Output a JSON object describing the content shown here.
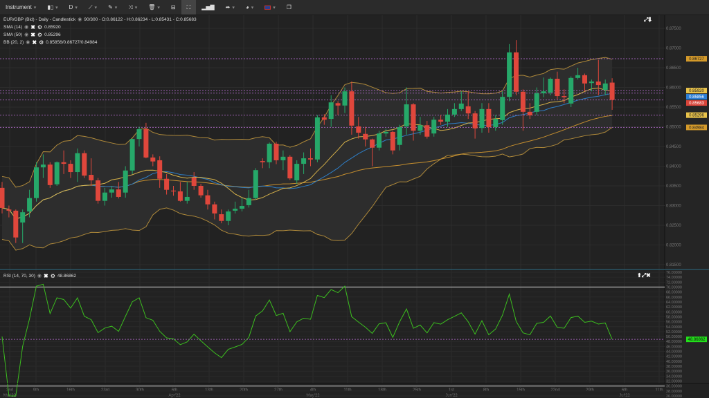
{
  "toolbar": {
    "instrument_label": "Instrument",
    "timeframe_label": "D",
    "caret": "▾",
    "icons": [
      "candlestick-type-icon",
      "trendline-icon",
      "pencil-icon",
      "indicators-icon",
      "trash-icon",
      "layout-icon",
      "fullscreen-icon",
      "bar-chart-icon",
      "share-icon",
      "theme-icon",
      "uk-flag-icon",
      "window-icon"
    ]
  },
  "legend": {
    "main_title": "EUR/GBP (Bid) - Daily - Candlestick",
    "main_values": "90/300 - O:0.86122 - H:0.86234 - L:0.85431 - C:0.85683",
    "sma14_label": "SMA (14)",
    "sma14_value": "0.85920",
    "sma50_label": "SMA (50)",
    "sma50_value": "0.85296",
    "bb_label": "BB (20, 2)",
    "bb_value": "0.85856/0.86727/0.84984",
    "rsi_label": "RSI (14, 70, 30)",
    "rsi_value": "48.86862"
  },
  "colors": {
    "up": "#26a869",
    "down": "#e0473c",
    "sma14": "#d8b34a",
    "sma50": "#c8902e",
    "bb_band": "#b08a3a",
    "bb_mid": "#2e7fc8",
    "rsi": "#3cbf1f",
    "level": "#9a5fb0"
  },
  "chart_data": {
    "type": "candlestick",
    "title": "EUR/GBP (Bid) - Daily - Candlestick",
    "ylim": [
      0.815,
      0.875
    ],
    "price_ticks": [
      "0.87500",
      "0.87000",
      "0.86500",
      "0.86000",
      "0.85500",
      "0.85000",
      "0.84500",
      "0.84000",
      "0.83500",
      "0.83000",
      "0.82500",
      "0.82000",
      "0.81500"
    ],
    "x_ticks": [
      {
        "day": "2nd",
        "month": "Mar'22"
      },
      {
        "day": "9th"
      },
      {
        "day": "16th"
      },
      {
        "day": "23rd"
      },
      {
        "day": "30th"
      },
      {
        "day": "6th",
        "month": "Apr'22"
      },
      {
        "day": "13th"
      },
      {
        "day": "20th"
      },
      {
        "day": "27th"
      },
      {
        "day": "4th",
        "month": "May'22"
      },
      {
        "day": "11th"
      },
      {
        "day": "18th"
      },
      {
        "day": "25th"
      },
      {
        "day": "1st",
        "month": "Jun'22"
      },
      {
        "day": "8th"
      },
      {
        "day": "15th"
      },
      {
        "day": "22nd"
      },
      {
        "day": "29th"
      },
      {
        "day": "6th",
        "month": "Jul'22"
      },
      {
        "day": "11th"
      }
    ],
    "ohlc_columns": [
      "open",
      "close",
      "high",
      "low"
    ],
    "ohlc": [
      [
        0.8345,
        0.8294,
        0.836,
        0.828
      ],
      [
        0.829,
        0.8287,
        0.83,
        0.827
      ],
      [
        0.8287,
        0.8219,
        0.829,
        0.8205
      ],
      [
        0.8257,
        0.8283,
        0.829,
        0.8205
      ],
      [
        0.8285,
        0.8319,
        0.834,
        0.827
      ],
      [
        0.8319,
        0.8397,
        0.841,
        0.831
      ],
      [
        0.8397,
        0.8404,
        0.843,
        0.837
      ],
      [
        0.8404,
        0.8352,
        0.841,
        0.8345
      ],
      [
        0.8354,
        0.841,
        0.8412,
        0.835
      ],
      [
        0.841,
        0.8406,
        0.844,
        0.838
      ],
      [
        0.8406,
        0.8385,
        0.8415,
        0.837
      ],
      [
        0.8385,
        0.8433,
        0.8445,
        0.836
      ],
      [
        0.8433,
        0.8376,
        0.844,
        0.837
      ],
      [
        0.8378,
        0.8364,
        0.842,
        0.835
      ],
      [
        0.8364,
        0.8312,
        0.837,
        0.8305
      ],
      [
        0.8312,
        0.8333,
        0.8345,
        0.83
      ],
      [
        0.8333,
        0.8341,
        0.835,
        0.832
      ],
      [
        0.8341,
        0.8322,
        0.836,
        0.8318
      ],
      [
        0.8333,
        0.8389,
        0.84,
        0.832
      ],
      [
        0.8389,
        0.8469,
        0.847,
        0.838
      ],
      [
        0.8469,
        0.8494,
        0.85,
        0.845
      ],
      [
        0.8494,
        0.8422,
        0.851,
        0.842
      ],
      [
        0.8422,
        0.8412,
        0.843,
        0.84
      ],
      [
        0.8415,
        0.8368,
        0.8425,
        0.8345
      ],
      [
        0.8368,
        0.834,
        0.838,
        0.8328
      ],
      [
        0.8338,
        0.8336,
        0.835,
        0.8325
      ],
      [
        0.8336,
        0.8312,
        0.836,
        0.831
      ],
      [
        0.8312,
        0.8322,
        0.836,
        0.8305
      ],
      [
        0.8371,
        0.835,
        0.8385,
        0.834
      ],
      [
        0.835,
        0.8326,
        0.8355,
        0.832
      ],
      [
        0.8326,
        0.8303,
        0.834,
        0.829
      ],
      [
        0.8303,
        0.828,
        0.831,
        0.8265
      ],
      [
        0.8278,
        0.8261,
        0.829,
        0.8255
      ],
      [
        0.8261,
        0.8285,
        0.829,
        0.825
      ],
      [
        0.8287,
        0.8292,
        0.831,
        0.828
      ],
      [
        0.8292,
        0.8299,
        0.832,
        0.8285
      ],
      [
        0.8301,
        0.8319,
        0.834,
        0.8295
      ],
      [
        0.8319,
        0.839,
        0.8395,
        0.8315
      ],
      [
        0.8413,
        0.841,
        0.842,
        0.8395
      ],
      [
        0.841,
        0.8457,
        0.846,
        0.8395
      ],
      [
        0.8457,
        0.8415,
        0.8462,
        0.8405
      ],
      [
        0.8415,
        0.8424,
        0.844,
        0.839
      ],
      [
        0.8424,
        0.8369,
        0.8428,
        0.8365
      ],
      [
        0.8364,
        0.8406,
        0.8415,
        0.8355
      ],
      [
        0.8406,
        0.842,
        0.8435,
        0.838
      ],
      [
        0.842,
        0.8417,
        0.8445,
        0.84
      ],
      [
        0.8417,
        0.8524,
        0.853,
        0.841
      ],
      [
        0.8524,
        0.8518,
        0.8532,
        0.8505
      ],
      [
        0.852,
        0.8562,
        0.858,
        0.85
      ],
      [
        0.856,
        0.8554,
        0.8565,
        0.853
      ],
      [
        0.8554,
        0.859,
        0.86,
        0.8535
      ],
      [
        0.859,
        0.8503,
        0.8615,
        0.848
      ],
      [
        0.8501,
        0.8485,
        0.8525,
        0.847
      ],
      [
        0.8482,
        0.8468,
        0.85,
        0.845
      ],
      [
        0.8468,
        0.8447,
        0.847,
        0.84
      ],
      [
        0.8447,
        0.8483,
        0.849,
        0.844
      ],
      [
        0.8483,
        0.8487,
        0.8495,
        0.8475
      ],
      [
        0.8487,
        0.844,
        0.849,
        0.843
      ],
      [
        0.8454,
        0.8499,
        0.8505,
        0.844
      ],
      [
        0.8501,
        0.8557,
        0.86,
        0.848
      ],
      [
        0.8557,
        0.849,
        0.856,
        0.8465
      ],
      [
        0.849,
        0.8504,
        0.8525,
        0.848
      ],
      [
        0.8504,
        0.8475,
        0.8515,
        0.847
      ],
      [
        0.8483,
        0.8518,
        0.8525,
        0.8475
      ],
      [
        0.8518,
        0.8513,
        0.853,
        0.8505
      ],
      [
        0.8513,
        0.8531,
        0.8545,
        0.85
      ],
      [
        0.8531,
        0.8545,
        0.856,
        0.8525
      ],
      [
        0.8545,
        0.8559,
        0.859,
        0.854
      ],
      [
        0.8552,
        0.8534,
        0.859,
        0.852
      ],
      [
        0.8534,
        0.8496,
        0.854,
        0.847
      ],
      [
        0.8497,
        0.8545,
        0.856,
        0.8485
      ],
      [
        0.8545,
        0.8499,
        0.856,
        0.8485
      ],
      [
        0.8499,
        0.852,
        0.853,
        0.849
      ],
      [
        0.8517,
        0.8576,
        0.859,
        0.8505
      ],
      [
        0.8576,
        0.8689,
        0.871,
        0.8565
      ],
      [
        0.8689,
        0.8589,
        0.872,
        0.858
      ],
      [
        0.8589,
        0.8538,
        0.8595,
        0.849
      ],
      [
        0.8538,
        0.8529,
        0.856,
        0.852
      ],
      [
        0.8538,
        0.8585,
        0.86,
        0.853
      ],
      [
        0.8585,
        0.859,
        0.8625,
        0.8575
      ],
      [
        0.8587,
        0.8622,
        0.8625,
        0.858
      ],
      [
        0.8622,
        0.8578,
        0.864,
        0.857
      ],
      [
        0.8578,
        0.8575,
        0.8595,
        0.856
      ],
      [
        0.8559,
        0.8624,
        0.8628,
        0.855
      ],
      [
        0.8624,
        0.8631,
        0.865,
        0.862
      ],
      [
        0.8631,
        0.861,
        0.8635,
        0.859
      ],
      [
        0.8611,
        0.8615,
        0.862,
        0.859
      ],
      [
        0.8615,
        0.8606,
        0.867,
        0.858
      ],
      [
        0.8594,
        0.861,
        0.862,
        0.858
      ],
      [
        0.86122,
        0.85683,
        0.86234,
        0.85431
      ]
    ],
    "level_labels": [
      {
        "value": 0.86727,
        "text": "0.86727",
        "color": "#d49a2a",
        "fg": "#222"
      },
      {
        "value": 0.8592,
        "text": "0.85920",
        "color": "#e8c24a",
        "fg": "#222"
      },
      {
        "value": 0.85856,
        "text": "0.85856",
        "color": "#2d7fd6",
        "fg": "#fff"
      },
      {
        "value": 0.85683,
        "text": "0.85683",
        "color": "#d9453a",
        "fg": "#fff"
      },
      {
        "value": 0.85296,
        "text": "0.85296",
        "color": "#e8c24a",
        "fg": "#222"
      },
      {
        "value": 0.84984,
        "text": "0.84984",
        "color": "#d49a2a",
        "fg": "#222"
      }
    ],
    "rsi": {
      "ylim": [
        26,
        76
      ],
      "overbought": 70,
      "oversold": 30,
      "period": 14,
      "ticks": [
        "76.00000",
        "74.00000",
        "72.00000",
        "70.00000",
        "68.00000",
        "66.00000",
        "64.00000",
        "62.00000",
        "60.00000",
        "58.00000",
        "56.00000",
        "54.00000",
        "52.00000",
        "50.00000",
        "48.00000",
        "46.00000",
        "44.00000",
        "42.00000",
        "40.00000",
        "38.00000",
        "36.00000",
        "34.00000",
        "32.00000",
        "30.00000",
        "28.00000",
        "26.00000"
      ],
      "last": 48.86862,
      "last_text": "48.86862"
    }
  }
}
